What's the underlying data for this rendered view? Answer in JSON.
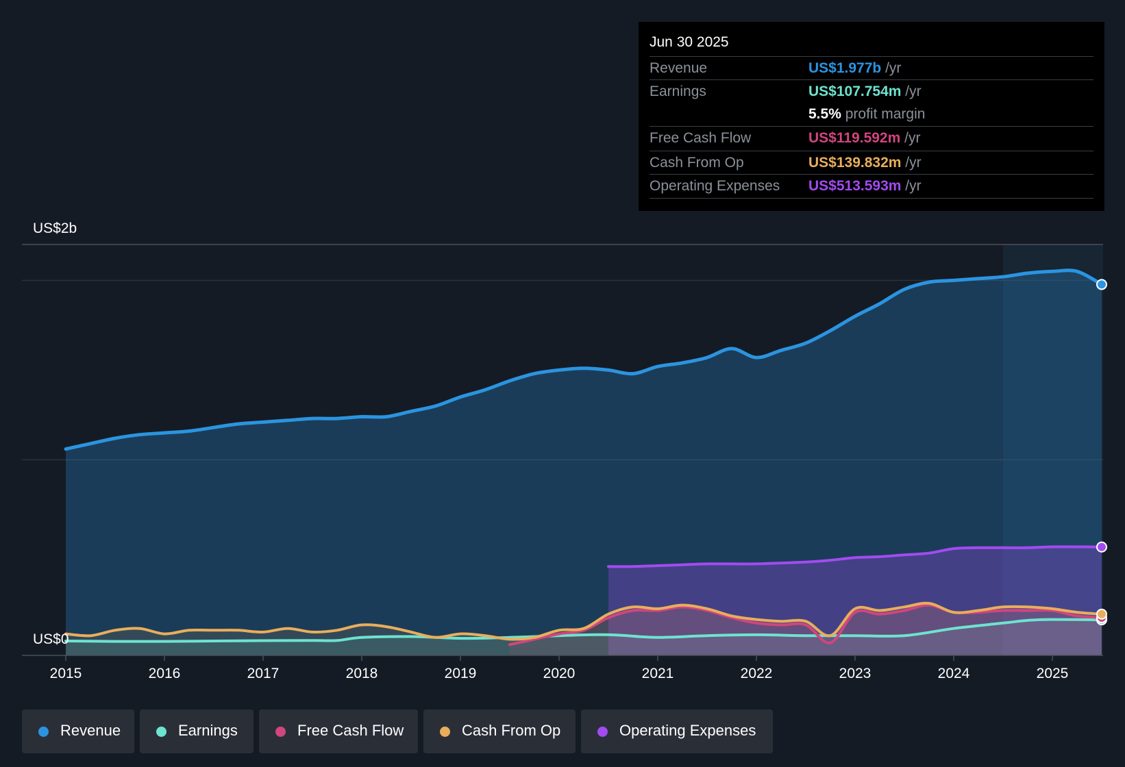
{
  "colors": {
    "revenue": "#2b94e0",
    "earnings": "#6ee3cf",
    "fcf": "#d0467d",
    "cfo": "#e9ae5c",
    "opex": "#a24bf0",
    "background": "#151b24"
  },
  "tooltip": {
    "date": "Jun 30 2025",
    "rows": [
      {
        "label": "Revenue",
        "value": "US$1.977b",
        "unit": "/yr"
      },
      {
        "label": "Earnings",
        "value": "US$107.754m",
        "unit": "/yr"
      },
      {
        "label": "",
        "value": "5.5%",
        "unit": "profit margin"
      },
      {
        "label": "Free Cash Flow",
        "value": "US$119.592m",
        "unit": "/yr"
      },
      {
        "label": "Cash From Op",
        "value": "US$139.832m",
        "unit": "/yr"
      },
      {
        "label": "Operating Expenses",
        "value": "US$513.593m",
        "unit": "/yr"
      }
    ]
  },
  "legend": {
    "items": [
      {
        "label": "Revenue",
        "color_key": "revenue"
      },
      {
        "label": "Earnings",
        "color_key": "earnings"
      },
      {
        "label": "Free Cash Flow",
        "color_key": "fcf"
      },
      {
        "label": "Cash From Op",
        "color_key": "cfo"
      },
      {
        "label": "Operating Expenses",
        "color_key": "opex"
      }
    ]
  },
  "chart_data": {
    "type": "area",
    "title": "",
    "y_top_label": "US$2b",
    "y_bottom_label": "US$0",
    "ylim": [
      -0.09,
      2.2
    ],
    "xlim": [
      2015,
      2025.5
    ],
    "x_ticks": [
      "2015",
      "2016",
      "2017",
      "2018",
      "2019",
      "2020",
      "2021",
      "2022",
      "2023",
      "2024",
      "2025"
    ],
    "highlight_from": 2024.5,
    "series": [
      {
        "name": "Revenue",
        "key": "revenue",
        "x": [
          2015,
          2015.25,
          2015.5,
          2015.75,
          2016,
          2016.25,
          2016.5,
          2016.75,
          2017,
          2017.25,
          2017.5,
          2017.75,
          2018,
          2018.25,
          2018.5,
          2018.75,
          2019,
          2019.25,
          2019.5,
          2019.75,
          2020,
          2020.25,
          2020.5,
          2020.75,
          2021,
          2021.25,
          2021.5,
          2021.75,
          2022,
          2022.25,
          2022.5,
          2022.75,
          2023,
          2023.25,
          2023.5,
          2023.75,
          2024,
          2024.25,
          2024.5,
          2024.75,
          2025,
          2025.25,
          2025.5
        ],
        "values": [
          1.06,
          1.09,
          1.12,
          1.14,
          1.15,
          1.16,
          1.18,
          1.2,
          1.21,
          1.22,
          1.23,
          1.23,
          1.24,
          1.24,
          1.27,
          1.3,
          1.35,
          1.39,
          1.44,
          1.48,
          1.5,
          1.51,
          1.5,
          1.48,
          1.52,
          1.54,
          1.57,
          1.62,
          1.57,
          1.61,
          1.65,
          1.72,
          1.8,
          1.87,
          1.95,
          1.99,
          2.0,
          2.01,
          2.02,
          2.04,
          2.05,
          2.05,
          1.977
        ]
      },
      {
        "name": "Operating Expenses",
        "key": "opex",
        "x": [
          2020.5,
          2020.75,
          2021,
          2021.25,
          2021.5,
          2021.75,
          2022,
          2022.25,
          2022.5,
          2022.75,
          2023,
          2023.25,
          2023.5,
          2023.75,
          2024,
          2024.25,
          2024.5,
          2024.75,
          2025,
          2025.25,
          2025.5
        ],
        "values": [
          0.405,
          0.405,
          0.41,
          0.415,
          0.42,
          0.42,
          0.42,
          0.425,
          0.43,
          0.44,
          0.455,
          0.46,
          0.47,
          0.48,
          0.505,
          0.51,
          0.51,
          0.51,
          0.515,
          0.515,
          0.514
        ]
      },
      {
        "name": "Earnings",
        "key": "earnings",
        "x": [
          2015,
          2015.5,
          2016,
          2016.5,
          2017,
          2017.5,
          2017.75,
          2018,
          2018.5,
          2019,
          2019.5,
          2020,
          2020.5,
          2021,
          2021.5,
          2022,
          2022.5,
          2023,
          2023.5,
          2024,
          2024.5,
          2024.75,
          2025,
          2025.5
        ],
        "values": [
          -0.01,
          -0.012,
          -0.012,
          -0.01,
          -0.008,
          -0.007,
          -0.007,
          0.01,
          0.015,
          0.005,
          0.01,
          0.02,
          0.025,
          0.01,
          0.02,
          0.025,
          0.02,
          0.02,
          0.02,
          0.06,
          0.09,
          0.105,
          0.11,
          0.108
        ]
      },
      {
        "name": "Free Cash Flow",
        "key": "fcf",
        "x": [
          2019.5,
          2019.75,
          2020,
          2020.25,
          2020.5,
          2020.75,
          2021,
          2021.25,
          2021.5,
          2021.75,
          2022,
          2022.25,
          2022.5,
          2022.75,
          2023,
          2023.25,
          2023.5,
          2023.75,
          2024,
          2024.25,
          2024.5,
          2024.75,
          2025,
          2025.25,
          2025.5
        ],
        "values": [
          -0.03,
          0.0,
          0.03,
          0.05,
          0.12,
          0.16,
          0.16,
          0.18,
          0.16,
          0.12,
          0.09,
          0.08,
          0.08,
          -0.02,
          0.15,
          0.14,
          0.16,
          0.19,
          0.15,
          0.15,
          0.16,
          0.16,
          0.16,
          0.13,
          0.12
        ]
      },
      {
        "name": "Cash From Op",
        "key": "cfo",
        "x": [
          2015,
          2015.25,
          2015.5,
          2015.75,
          2016,
          2016.25,
          2016.5,
          2016.75,
          2017,
          2017.25,
          2017.5,
          2017.75,
          2018,
          2018.25,
          2018.5,
          2018.75,
          2019,
          2019.25,
          2019.5,
          2019.75,
          2020,
          2020.25,
          2020.5,
          2020.75,
          2021,
          2021.25,
          2021.5,
          2021.75,
          2022,
          2022.25,
          2022.5,
          2022.75,
          2023,
          2023.25,
          2023.5,
          2023.75,
          2024,
          2024.25,
          2024.5,
          2024.75,
          2025,
          2025.25,
          2025.5
        ],
        "values": [
          0.03,
          0.02,
          0.05,
          0.06,
          0.03,
          0.05,
          0.05,
          0.05,
          0.04,
          0.06,
          0.04,
          0.05,
          0.08,
          0.07,
          0.04,
          0.01,
          0.03,
          0.02,
          0.0,
          0.01,
          0.05,
          0.06,
          0.14,
          0.18,
          0.17,
          0.19,
          0.17,
          0.13,
          0.11,
          0.1,
          0.1,
          0.02,
          0.17,
          0.16,
          0.18,
          0.2,
          0.15,
          0.16,
          0.18,
          0.18,
          0.17,
          0.15,
          0.14
        ]
      }
    ]
  }
}
